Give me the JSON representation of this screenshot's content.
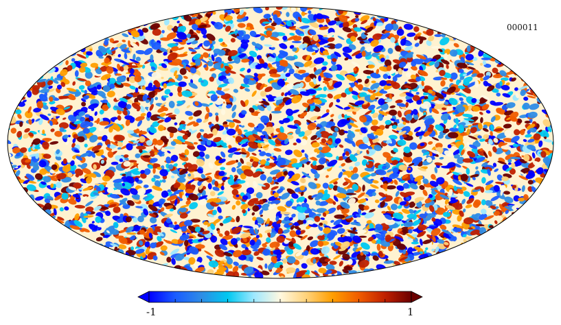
{
  "map": {
    "identifier": "000011",
    "projection": "mollweide",
    "field": "random-noise-temperature-map"
  },
  "colorbar": {
    "min_label": "-1",
    "max_label": "1",
    "min": -1,
    "max": 1,
    "tick_count": 11,
    "colors": [
      "#0000ff",
      "#1a5cff",
      "#2e8ce6",
      "#00c8f0",
      "#9ee8ff",
      "#fff8e0",
      "#ffd27a",
      "#ff9e00",
      "#f05c00",
      "#c02000",
      "#6a0000"
    ]
  }
}
